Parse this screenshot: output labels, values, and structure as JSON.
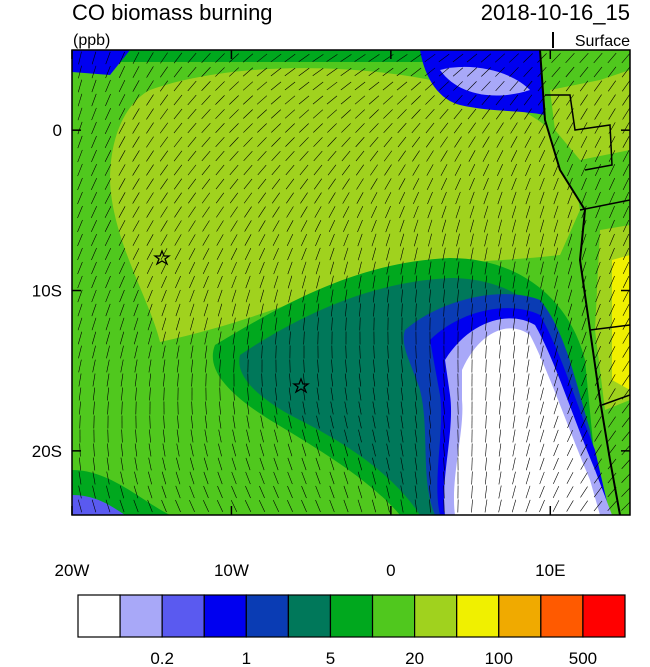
{
  "title": "CO biomass burning",
  "date": "2018-10-16_15",
  "units": "(ppb)",
  "level": "Surface",
  "map": {
    "xlim": [
      -20,
      15
    ],
    "ylim": [
      -24,
      5
    ],
    "lon_ticks": [
      {
        "value": -20,
        "label": "20W"
      },
      {
        "value": -10,
        "label": "10W"
      },
      0,
      {
        "value": 10,
        "label": "10E"
      }
    ],
    "lat_ticks": [
      0,
      {
        "value": -10,
        "label": "10S"
      },
      {
        "value": -20,
        "label": "20S"
      }
    ]
  },
  "colorbar": {
    "colors": [
      "#ffffff",
      "#a8a8f8",
      "#5a5af0",
      "#0000f0",
      "#0a3cb4",
      "#00785a",
      "#00a81e",
      "#50c81e",
      "#a0d21e",
      "#f0f000",
      "#f0aa00",
      "#ff5a00",
      "#ff0000"
    ],
    "labels": [
      "0.2",
      "1",
      "5",
      "20",
      "100",
      "500"
    ]
  }
}
